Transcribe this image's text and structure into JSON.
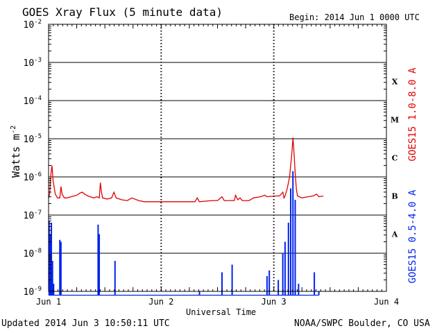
{
  "title": "GOES Xray Flux (5 minute data)",
  "begin": "Begin:  2014 Jun 1 0000 UTC",
  "updated": "Updated 2014 Jun  3 10:50:11 UTC",
  "credit": "NOAA/SWPC Boulder, CO USA",
  "colors": {
    "long": "#e00000",
    "short": "#0022ee",
    "axis": "#000000"
  },
  "chart_data": {
    "type": "line",
    "title": "GOES Xray Flux (5 minute data)",
    "xlabel": "Universal Time",
    "ylabel": "Watts m",
    "ylabel_sup": "-2",
    "yscale": "log",
    "ylim": [
      1e-09,
      0.01
    ],
    "xlim_days": [
      0,
      3
    ],
    "x_unit": "days since 2014 Jun 1 0000 UTC",
    "x_ticks": [
      {
        "label": "Jun 1",
        "value": 0
      },
      {
        "label": "Jun 2",
        "value": 1
      },
      {
        "label": "Jun 3",
        "value": 2
      },
      {
        "label": "Jun 4",
        "value": 3
      }
    ],
    "y_ticks": [
      {
        "base": "10",
        "exp": "-9",
        "value": -9
      },
      {
        "base": "10",
        "exp": "-8",
        "value": -8
      },
      {
        "base": "10",
        "exp": "-7",
        "value": -7
      },
      {
        "base": "10",
        "exp": "-6",
        "value": -6
      },
      {
        "base": "10",
        "exp": "-5",
        "value": -5
      },
      {
        "base": "10",
        "exp": "-4",
        "value": -4
      },
      {
        "base": "10",
        "exp": "-3",
        "value": -3
      },
      {
        "base": "10",
        "exp": "-2",
        "value": -2
      }
    ],
    "flare_classes": [
      {
        "label": "A",
        "log_center": -7.5
      },
      {
        "label": "B",
        "log_center": -6.5
      },
      {
        "label": "C",
        "log_center": -5.5
      },
      {
        "label": "M",
        "log_center": -4.5
      },
      {
        "label": "X",
        "log_center": -3.5
      }
    ],
    "grid": {
      "horizontal_decades": true,
      "vertical_days": "dashed"
    },
    "series": [
      {
        "name": "GOES15 1.0-8.0 A",
        "color": "#e00000",
        "log_values": [
          [
            0.0,
            -6.55
          ],
          [
            0.01,
            -6.45
          ],
          [
            0.02,
            -5.95
          ],
          [
            0.03,
            -5.7
          ],
          [
            0.04,
            -6.1
          ],
          [
            0.06,
            -6.45
          ],
          [
            0.08,
            -6.55
          ],
          [
            0.1,
            -6.55
          ],
          [
            0.11,
            -6.25
          ],
          [
            0.12,
            -6.45
          ],
          [
            0.14,
            -6.55
          ],
          [
            0.16,
            -6.55
          ],
          [
            0.2,
            -6.52
          ],
          [
            0.25,
            -6.48
          ],
          [
            0.28,
            -6.42
          ],
          [
            0.3,
            -6.4
          ],
          [
            0.32,
            -6.45
          ],
          [
            0.35,
            -6.5
          ],
          [
            0.4,
            -6.55
          ],
          [
            0.43,
            -6.52
          ],
          [
            0.45,
            -6.55
          ],
          [
            0.46,
            -6.15
          ],
          [
            0.47,
            -6.4
          ],
          [
            0.48,
            -6.55
          ],
          [
            0.52,
            -6.58
          ],
          [
            0.56,
            -6.55
          ],
          [
            0.58,
            -6.4
          ],
          [
            0.6,
            -6.55
          ],
          [
            0.65,
            -6.6
          ],
          [
            0.7,
            -6.62
          ],
          [
            0.74,
            -6.55
          ],
          [
            0.8,
            -6.62
          ],
          [
            0.85,
            -6.65
          ],
          [
            0.9,
            -6.65
          ],
          [
            1.0,
            -6.65
          ],
          [
            1.1,
            -6.65
          ],
          [
            1.2,
            -6.65
          ],
          [
            1.3,
            -6.65
          ],
          [
            1.32,
            -6.55
          ],
          [
            1.34,
            -6.65
          ],
          [
            1.45,
            -6.62
          ],
          [
            1.5,
            -6.62
          ],
          [
            1.54,
            -6.52
          ],
          [
            1.56,
            -6.62
          ],
          [
            1.65,
            -6.62
          ],
          [
            1.66,
            -6.48
          ],
          [
            1.68,
            -6.6
          ],
          [
            1.7,
            -6.55
          ],
          [
            1.72,
            -6.62
          ],
          [
            1.78,
            -6.62
          ],
          [
            1.82,
            -6.55
          ],
          [
            1.88,
            -6.52
          ],
          [
            1.92,
            -6.48
          ],
          [
            1.94,
            -6.52
          ],
          [
            2.0,
            -6.5
          ],
          [
            2.05,
            -6.5
          ],
          [
            2.08,
            -6.4
          ],
          [
            2.09,
            -6.55
          ],
          [
            2.1,
            -6.5
          ],
          [
            2.12,
            -6.3
          ],
          [
            2.14,
            -6.0
          ],
          [
            2.16,
            -5.4
          ],
          [
            2.17,
            -4.97
          ],
          [
            2.18,
            -5.4
          ],
          [
            2.19,
            -5.9
          ],
          [
            2.2,
            -6.3
          ],
          [
            2.21,
            -6.5
          ],
          [
            2.25,
            -6.55
          ],
          [
            2.3,
            -6.52
          ],
          [
            2.35,
            -6.5
          ],
          [
            2.38,
            -6.45
          ],
          [
            2.4,
            -6.52
          ],
          [
            2.44,
            -6.5
          ]
        ]
      },
      {
        "name": "GOES15 0.5-4.0 A",
        "color": "#0022ee",
        "floor": -9.1,
        "spikes": [
          {
            "x": 0.005,
            "log": -7.15
          },
          {
            "x": 0.015,
            "log": -7.5
          },
          {
            "x": 0.025,
            "log": -7.2
          },
          {
            "x": 0.035,
            "log": -8.2
          },
          {
            "x": 0.045,
            "log": -8.8
          },
          {
            "x": 0.1,
            "log": -7.65
          },
          {
            "x": 0.11,
            "log": -7.7
          },
          {
            "x": 0.44,
            "log": -7.25
          },
          {
            "x": 0.45,
            "log": -7.5
          },
          {
            "x": 0.59,
            "log": -8.2
          },
          {
            "x": 1.34,
            "log": -9.0
          },
          {
            "x": 1.54,
            "log": -8.5
          },
          {
            "x": 1.63,
            "log": -8.3
          },
          {
            "x": 1.94,
            "log": -8.6
          },
          {
            "x": 1.96,
            "log": -8.45
          },
          {
            "x": 2.04,
            "log": -8.7
          },
          {
            "x": 2.08,
            "log": -8.0
          },
          {
            "x": 2.1,
            "log": -7.7
          },
          {
            "x": 2.13,
            "log": -7.2
          },
          {
            "x": 2.15,
            "log": -6.3
          },
          {
            "x": 2.17,
            "log": -5.85
          },
          {
            "x": 2.19,
            "log": -6.6
          },
          {
            "x": 2.22,
            "log": -8.8
          },
          {
            "x": 2.36,
            "log": -8.5
          },
          {
            "x": 2.4,
            "log": -9.0
          }
        ]
      }
    ]
  }
}
